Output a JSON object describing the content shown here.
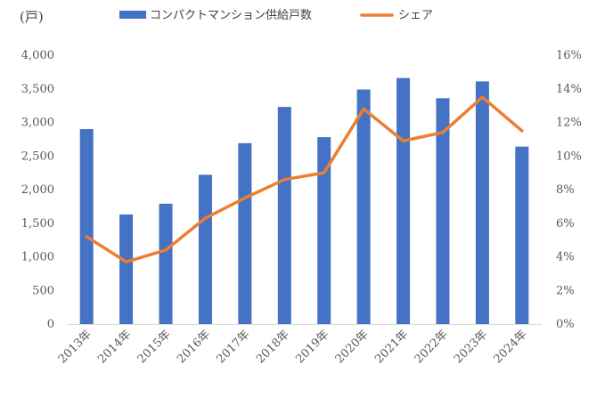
{
  "chart_data": {
    "type": "bar",
    "unit_label": "(戸)",
    "categories": [
      "2013年",
      "2014年",
      "2015年",
      "2016年",
      "2017年",
      "2018年",
      "2019年",
      "2020年",
      "2021年",
      "2022年",
      "2023年",
      "2024年"
    ],
    "series": [
      {
        "name": "コンパクトマンション供給戸数",
        "type": "bar",
        "axis": "left",
        "color": "#4472C4",
        "values": [
          2900,
          1630,
          1790,
          2220,
          2690,
          3230,
          2780,
          3490,
          3660,
          3360,
          3610,
          2640
        ]
      },
      {
        "name": "シェア",
        "type": "line",
        "axis": "right",
        "color": "#ED7D31",
        "values": [
          0.052,
          0.037,
          0.044,
          0.063,
          0.075,
          0.086,
          0.09,
          0.128,
          0.109,
          0.114,
          0.135,
          0.115
        ]
      }
    ],
    "y_left": {
      "min": 0,
      "max": 4000,
      "step": 500,
      "tick_labels": [
        "0",
        "500",
        "1,000",
        "1,500",
        "2,000",
        "2,500",
        "3,000",
        "3,500",
        "4,000"
      ]
    },
    "y_right": {
      "min": 0,
      "max": 0.16,
      "step": 0.02,
      "tick_labels": [
        "0%",
        "2%",
        "4%",
        "6%",
        "8%",
        "10%",
        "12%",
        "14%",
        "16%"
      ]
    },
    "grid": false,
    "legend_position": "top"
  }
}
